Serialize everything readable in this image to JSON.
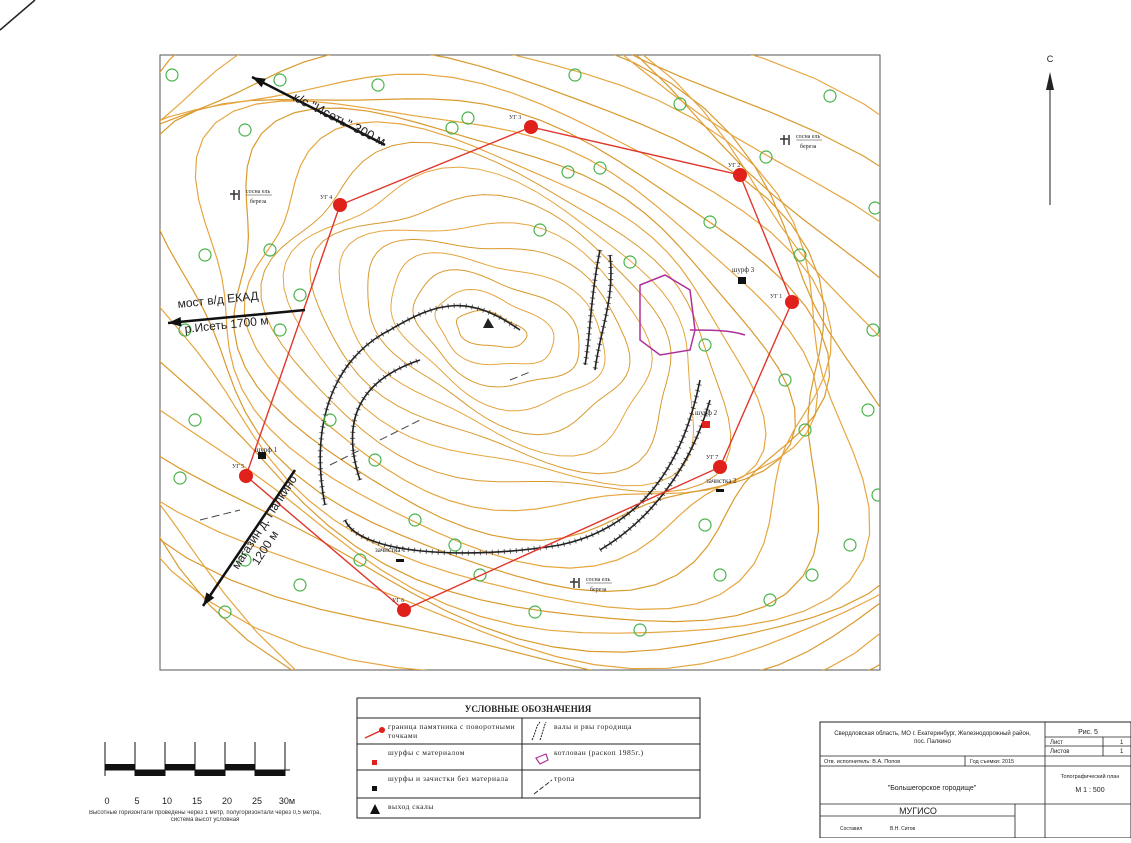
{
  "map": {
    "north_label": "С",
    "arrows": [
      {
        "label": "к/с \"Исеть\" 300 м"
      },
      {
        "label": "мост в/д ЕКАД",
        "sublabel": "р.Исеть 1700 м"
      },
      {
        "label": "магазин д. Палкино",
        "sublabel": "1200 м"
      }
    ],
    "boundary_points": [
      "УГ 1",
      "УГ 2",
      "УГ 3",
      "УГ 4",
      "УГ 5",
      "УГ 6",
      "УГ 7"
    ],
    "test_pits": [
      "шурф 1",
      "шурф 2",
      "шурф 3",
      "зачистка 1",
      "зачистка 2"
    ],
    "tree_note": {
      "top": "сосна ель",
      "bottom": "береза"
    }
  },
  "scale": {
    "labels": [
      "0",
      "5",
      "10",
      "15",
      "20",
      "25",
      "30м"
    ],
    "note": "Высотные горизонтали проведены через 1 метр, полугоризонтали через 0,5 метра, система высот условная"
  },
  "legend": {
    "title": "УСЛОВНЫЕ ОБОЗНАЧЕНИЯ",
    "items": [
      "граница памятника с поворотными точками",
      "валы и рвы городища",
      "шурфы с материалом",
      "котлован (раскоп 1985г.)",
      "шурфы и зачистки без материала",
      "тропа",
      "выход скалы"
    ]
  },
  "title_block": {
    "location": "Свердловская область, МО г. Екатеринбург, Железнодорожный район, пос. Палкино",
    "figure": "Рис. 5",
    "sheet_label": "Лист",
    "sheet": "1",
    "sheets_label": "Листов",
    "sheets": "1",
    "executor": "Отв. исполнитель: В.А. Попов",
    "year": "Год съемки: 2015",
    "site": "\"Большегорское городище\"",
    "plan_type": "Топографический план",
    "plan_scale": "М 1 : 500",
    "org": "МУГИСО",
    "made_by": "Составил",
    "made_by_name": "В.Н. Ситов"
  }
}
